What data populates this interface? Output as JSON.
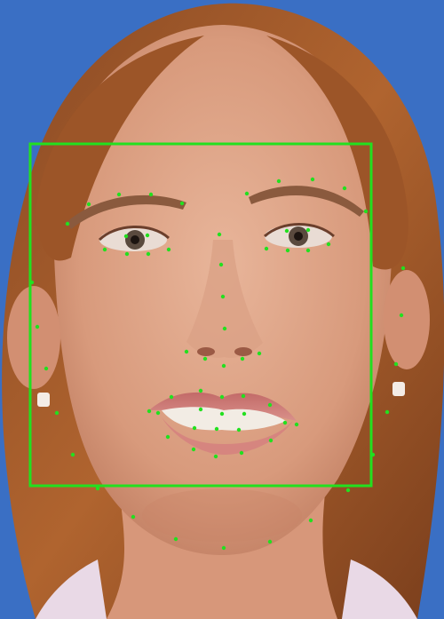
{
  "image": {
    "subject": "face-photo",
    "background_color": "#3a6fc4"
  },
  "annotation": {
    "box_color": "#22e01f",
    "landmark_color": "#22e01f",
    "landmark_count": 68
  }
}
